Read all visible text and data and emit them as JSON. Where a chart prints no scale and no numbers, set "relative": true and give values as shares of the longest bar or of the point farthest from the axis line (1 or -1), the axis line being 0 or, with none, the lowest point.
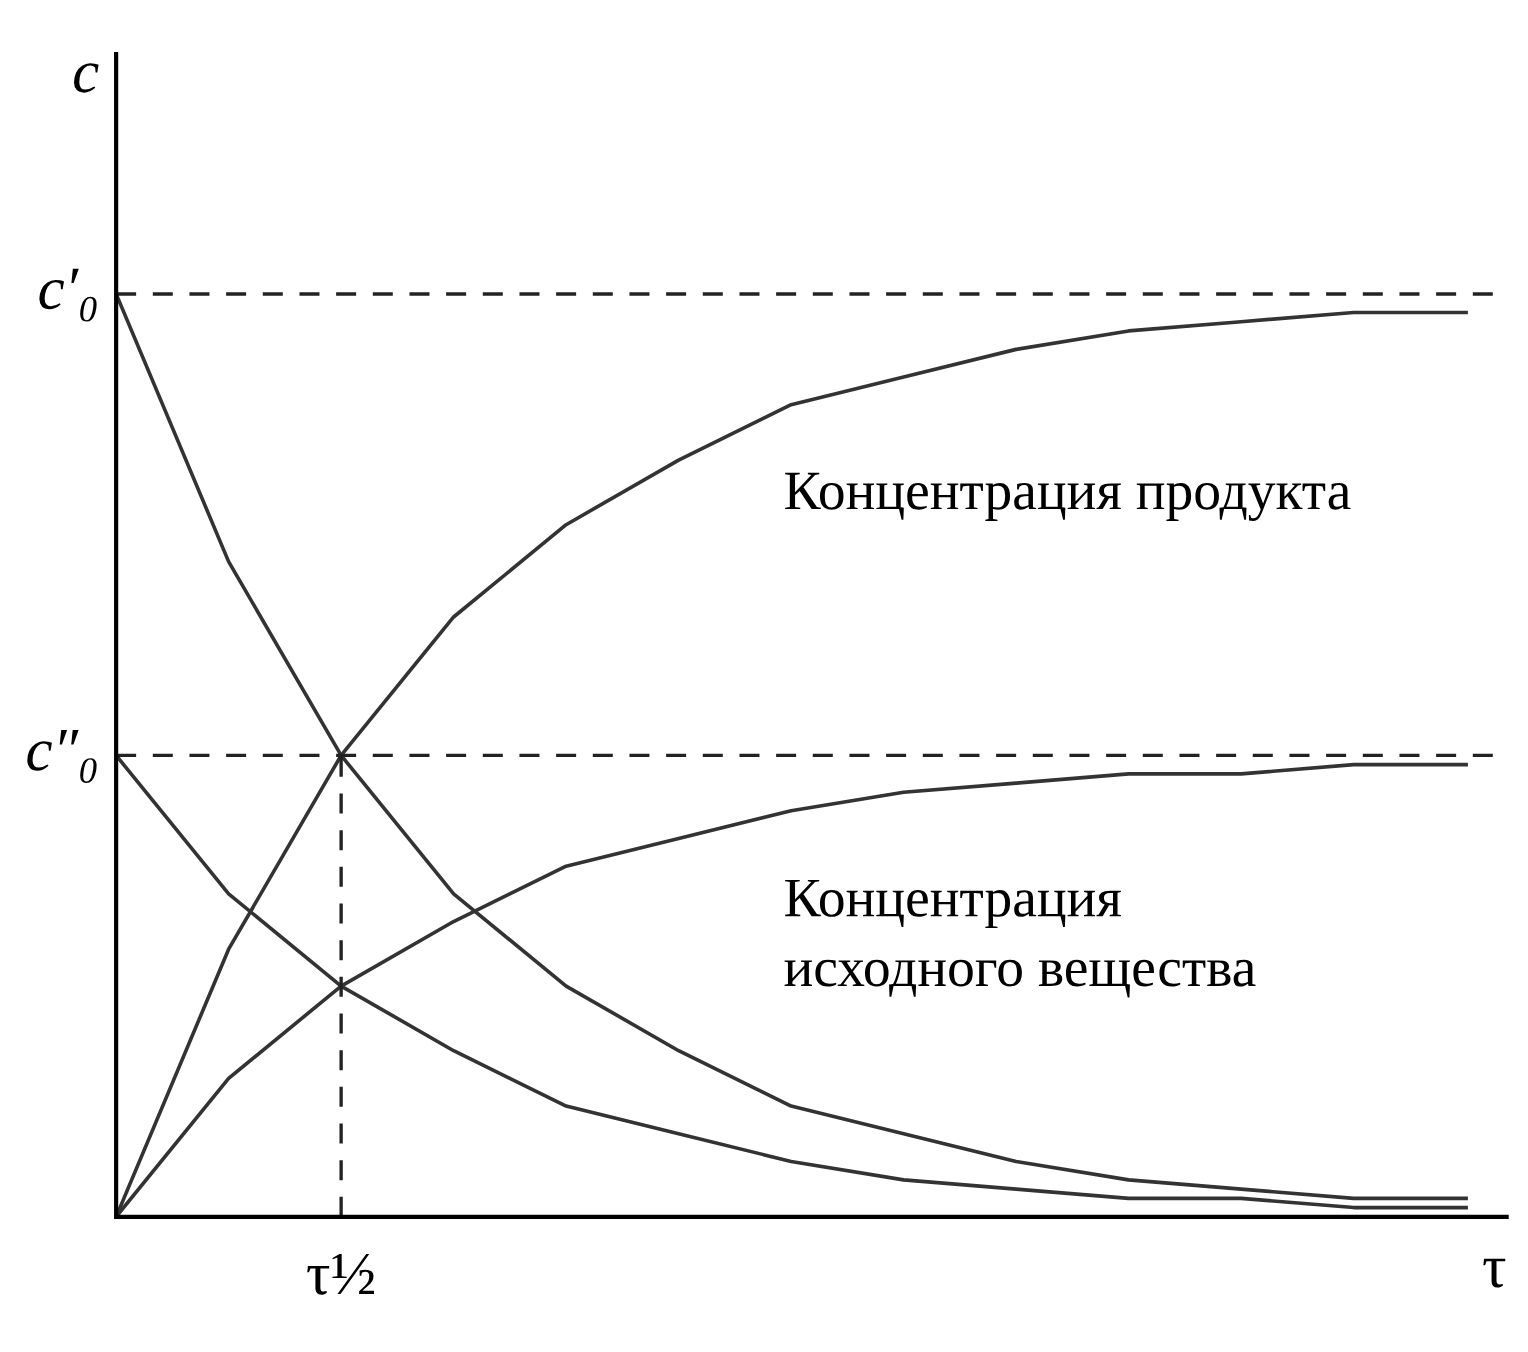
{
  "chart_data": {
    "type": "line",
    "xlabel": "τ",
    "ylabel": "c",
    "categories": [
      null,
      null,
      null,
      null,
      null,
      null,
      null,
      null,
      null,
      null,
      null,
      null,
      null
    ],
    "relative": true,
    "series": [
      {
        "color": "#333333",
        "values": [
          1.0,
          0.71,
          0.5,
          0.35,
          0.25,
          0.18,
          0.12,
          0.09,
          0.06,
          0.04,
          0.03,
          0.02,
          0.02
        ]
      },
      {
        "color": "#333333",
        "values": [
          0.0,
          0.29,
          0.5,
          0.65,
          0.75,
          0.82,
          0.88,
          0.91,
          0.94,
          0.96,
          0.97,
          0.98,
          0.98
        ]
      },
      {
        "color": "#333333",
        "values": [
          0.5,
          0.35,
          0.25,
          0.18,
          0.12,
          0.09,
          0.06,
          0.04,
          0.03,
          0.02,
          0.02,
          0.01,
          0.01
        ]
      },
      {
        "color": "#333333",
        "values": [
          0.0,
          0.15,
          0.25,
          0.32,
          0.38,
          0.41,
          0.44,
          0.46,
          0.47,
          0.48,
          0.48,
          0.49,
          0.49
        ]
      }
    ],
    "ref_lines": [
      {
        "axis": "y",
        "value": 1.0,
        "label": "c′₀",
        "line_style": "dashed"
      },
      {
        "axis": "y",
        "value": 0.5,
        "label": "c″₀",
        "line_style": "dashed"
      }
    ],
    "annotations": [
      "Концентрация продукта",
      "Концентрация\nисходного вещества",
      "τ½"
    ],
    "marker": "none",
    "line_style": "solid"
  }
}
